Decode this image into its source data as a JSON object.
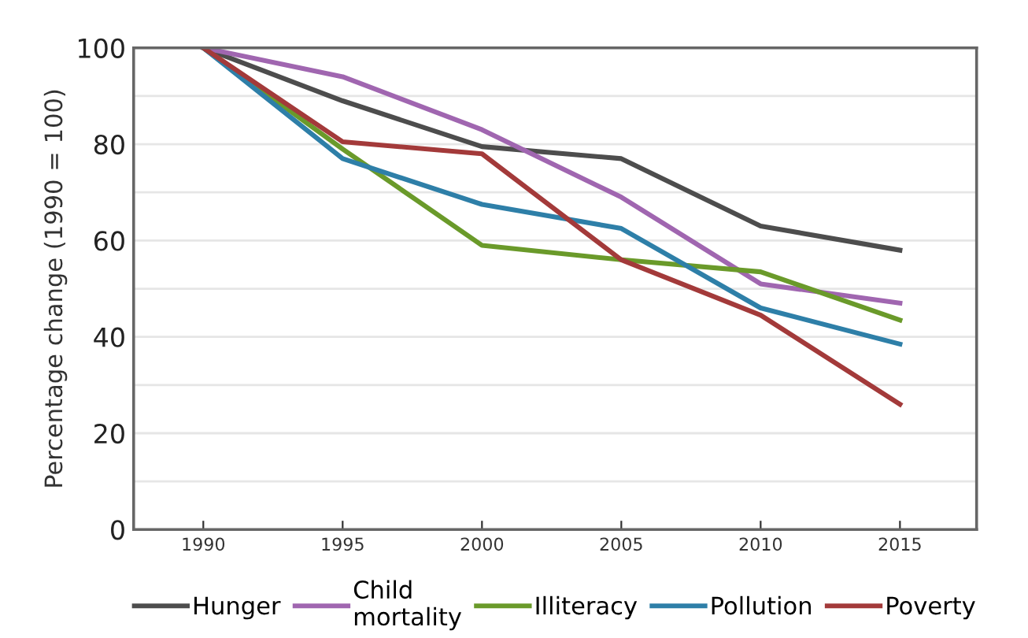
{
  "chart_data": {
    "type": "line",
    "ylabel": "Percentage change (1990 = 100)",
    "x": [
      1990,
      1995,
      2000,
      2005,
      2010,
      2015
    ],
    "xlim": [
      1987.5,
      2017.75
    ],
    "xticks": [
      1990,
      1995,
      2000,
      2005,
      2010,
      2015
    ],
    "ylim": [
      0,
      100
    ],
    "yticks": [
      0,
      {
        "value": 10,
        "label": null
      },
      20,
      {
        "value": 30,
        "label": null
      },
      40,
      {
        "value": 50,
        "label": null
      },
      60,
      {
        "value": 70,
        "label": null
      },
      80,
      {
        "value": 90,
        "label": null
      },
      100
    ],
    "grid": "y",
    "legend": "bottom",
    "marker": "none",
    "line_style": "solid",
    "series": [
      {
        "name": "Hunger",
        "color": "#4d4d4d",
        "values": [
          100,
          89,
          79.5,
          77,
          63,
          58
        ]
      },
      {
        "name": "Child\nmortality",
        "color": "#a066b0",
        "values": [
          100,
          94,
          83,
          69,
          51,
          47
        ]
      },
      {
        "name": "Illiteracy",
        "color": "#6a9a2a",
        "values": [
          100,
          79,
          59,
          56,
          53.5,
          43.5
        ]
      },
      {
        "name": "Pollution",
        "color": "#2e7fa8",
        "values": [
          100,
          77,
          67.5,
          62.5,
          46,
          38.5
        ]
      },
      {
        "name": "Poverty",
        "color": "#a33a3a",
        "values": [
          100,
          80.5,
          78,
          56,
          44.5,
          26
        ]
      }
    ]
  }
}
